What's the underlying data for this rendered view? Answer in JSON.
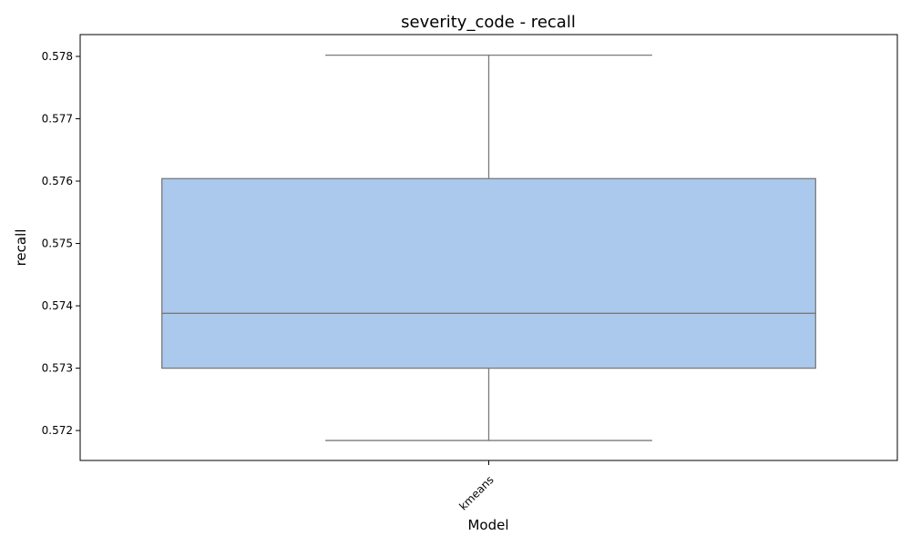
{
  "chart_data": {
    "type": "box",
    "title": "severity_code - recall",
    "xlabel": "Model",
    "ylabel": "recall",
    "categories": [
      "kmeans"
    ],
    "series": [
      {
        "category": "kmeans",
        "whisker_low": 0.57184,
        "q1": 0.573,
        "median": 0.57388,
        "q3": 0.57604,
        "whisker_high": 0.57802
      }
    ],
    "y_ticks": [
      "0.572",
      "0.573",
      "0.574",
      "0.575",
      "0.576",
      "0.577",
      "0.578"
    ],
    "ylim": [
      0.57152,
      0.57835
    ],
    "x_tick_rotation_deg": 45,
    "grid": false,
    "legend": "none",
    "colors": {
      "box_fill": "#abc9ec",
      "box_edge": "#7a7a7a",
      "axis": "#000000"
    }
  }
}
